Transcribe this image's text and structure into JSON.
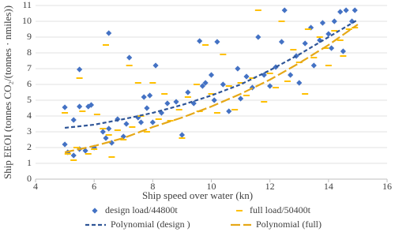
{
  "chart_data": {
    "type": "scatter",
    "x_label": "Ship speed over water (kn)",
    "y_label": "Ship EEOI (tonnes CO₂/(tonnes · nmiles))",
    "xlim": [
      4,
      16
    ],
    "xticks": [
      4,
      6,
      8,
      10,
      12,
      14,
      16
    ],
    "ylim": [
      0,
      11
    ],
    "yticks": [
      0,
      1,
      2,
      3,
      4,
      5,
      6,
      7,
      8,
      9,
      10,
      11
    ],
    "grid": true,
    "legend": "bottom",
    "series": [
      {
        "name": "design load/44800t",
        "color": "#4472c4",
        "marker": "diamond",
        "x": [
          5.0,
          5.0,
          5.1,
          5.3,
          5.3,
          5.5,
          5.5,
          5.5,
          5.7,
          5.8,
          5.9,
          6.0,
          6.3,
          6.4,
          6.5,
          6.5,
          6.6,
          6.8,
          7.0,
          7.1,
          7.2,
          7.5,
          7.6,
          7.7,
          7.8,
          7.9,
          8.0,
          8.1,
          8.3,
          8.5,
          8.8,
          9.0,
          9.2,
          9.4,
          9.6,
          9.7,
          9.8,
          10.0,
          10.1,
          10.2,
          10.4,
          10.6,
          10.9,
          11.0,
          11.2,
          11.4,
          11.6,
          11.8,
          12.0,
          12.2,
          12.4,
          12.5,
          12.7,
          12.9,
          13.0,
          13.2,
          13.4,
          13.5,
          13.7,
          13.8,
          14.0,
          14.1,
          14.2,
          14.4,
          14.5,
          14.6,
          14.8,
          14.9
        ],
        "values": [
          4.55,
          2.2,
          1.7,
          3.75,
          1.5,
          6.95,
          4.6,
          1.9,
          1.8,
          4.6,
          4.7,
          2.0,
          3.0,
          2.6,
          9.25,
          3.2,
          2.3,
          3.8,
          2.7,
          3.5,
          7.7,
          3.9,
          3.6,
          5.2,
          4.5,
          5.3,
          3.6,
          7.2,
          4.2,
          4.8,
          4.9,
          2.8,
          5.5,
          4.8,
          8.75,
          5.9,
          6.1,
          6.6,
          5.0,
          8.7,
          6.0,
          4.3,
          7.0,
          5.1,
          6.5,
          5.8,
          9.0,
          6.6,
          5.9,
          7.1,
          8.7,
          10.7,
          6.6,
          7.8,
          6.1,
          8.6,
          9.6,
          7.2,
          8.8,
          9.9,
          9.2,
          8.3,
          10.0,
          10.6,
          8.1,
          10.7,
          10.0,
          10.7
        ]
      },
      {
        "name": "full load/50400t",
        "color": "#ffc000",
        "marker": "dash",
        "x": [
          5.0,
          5.1,
          5.3,
          5.4,
          5.5,
          5.6,
          5.8,
          6.0,
          6.1,
          6.3,
          6.4,
          6.5,
          6.6,
          6.8,
          7.0,
          7.2,
          7.3,
          7.5,
          7.6,
          7.8,
          8.0,
          8.2,
          8.4,
          8.6,
          8.9,
          9.0,
          9.2,
          9.5,
          9.6,
          9.8,
          10.0,
          10.2,
          10.4,
          10.6,
          10.8,
          11.0,
          11.2,
          11.4,
          11.6,
          11.8,
          12.0,
          12.2,
          12.4,
          12.6,
          12.8,
          13.0,
          13.2,
          13.3,
          13.5,
          13.7,
          13.9,
          14.0,
          14.2,
          14.4,
          14.5,
          14.7,
          14.9
        ],
        "values": [
          4.2,
          1.6,
          1.2,
          2.0,
          6.4,
          4.3,
          1.6,
          1.9,
          4.1,
          3.2,
          8.5,
          2.8,
          1.4,
          3.1,
          2.5,
          7.2,
          3.3,
          6.1,
          4.0,
          3.0,
          6.1,
          3.8,
          5.4,
          3.7,
          4.4,
          2.6,
          5.2,
          6.0,
          4.3,
          8.5,
          5.4,
          4.2,
          7.9,
          5.9,
          4.4,
          6.1,
          5.3,
          6.4,
          10.7,
          4.9,
          6.7,
          5.8,
          10.0,
          6.2,
          8.2,
          7.4,
          5.4,
          9.5,
          7.7,
          9.0,
          8.3,
          7.2,
          9.4,
          8.8,
          7.8,
          9.5,
          9.6
        ]
      },
      {
        "name": "Polynomial (design )",
        "color": "#2f5597",
        "marker": "line",
        "dash": "5,3",
        "x": [
          5,
          6,
          7,
          8,
          9,
          10,
          11,
          12,
          13,
          14,
          15
        ],
        "values": [
          3.25,
          3.45,
          3.8,
          4.2,
          4.7,
          5.3,
          6.0,
          6.9,
          7.9,
          9.0,
          10.1
        ]
      },
      {
        "name": "Polynomial (full)",
        "color": "#e6a817",
        "marker": "line",
        "dash": "12,4",
        "x": [
          5,
          6,
          7,
          8,
          9,
          10,
          11,
          12,
          13,
          14,
          15
        ],
        "values": [
          1.7,
          2.1,
          2.6,
          3.3,
          3.9,
          4.6,
          5.4,
          6.3,
          7.35,
          8.5,
          9.8
        ]
      }
    ]
  }
}
